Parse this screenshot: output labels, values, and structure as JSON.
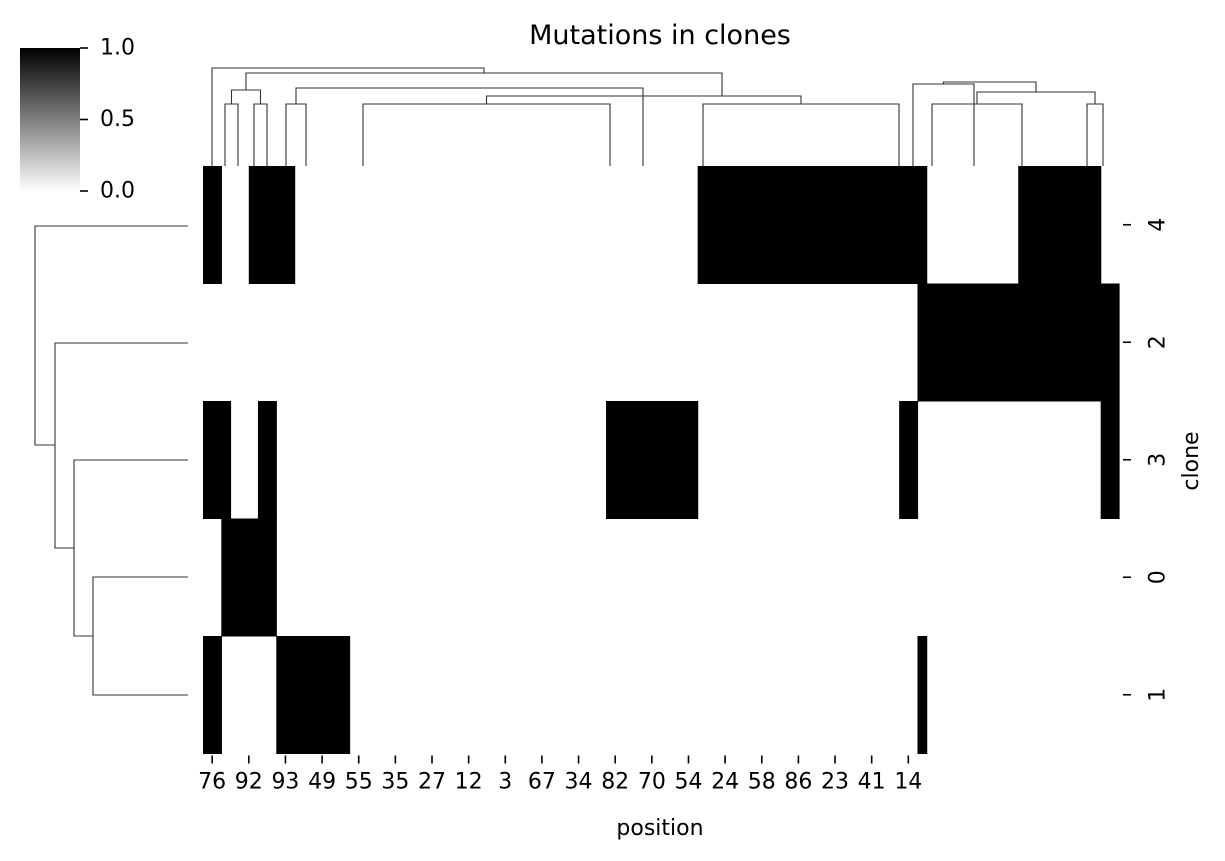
{
  "chart_data": {
    "type": "heatmap",
    "title": "Mutations in clones",
    "xlabel": "position",
    "ylabel": "clone",
    "x_tick_labels": [
      "76",
      "92",
      "93",
      "49",
      "55",
      "35",
      "27",
      "12",
      "3",
      "67",
      "34",
      "82",
      "70",
      "54",
      "24",
      "58",
      "86",
      "23",
      "41",
      "14"
    ],
    "rows": [
      {
        "clone": "4",
        "blocks": [
          [
            0,
            1
          ],
          [
            2.5,
            5
          ],
          [
            27,
            39.5
          ],
          [
            44.5,
            49
          ]
        ]
      },
      {
        "clone": "2",
        "blocks": [
          [
            39,
            50
          ]
        ]
      },
      {
        "clone": "3",
        "blocks": [
          [
            0,
            1.5
          ],
          [
            3,
            4
          ],
          [
            22,
            27
          ],
          [
            38,
            39
          ],
          [
            49,
            50
          ]
        ]
      },
      {
        "clone": "0",
        "blocks": [
          [
            1,
            4
          ]
        ]
      },
      {
        "clone": "1",
        "blocks": [
          [
            0,
            1
          ],
          [
            4,
            8
          ],
          [
            39,
            39.5
          ]
        ]
      }
    ],
    "column_units": 50,
    "value_range": [
      0,
      1
    ],
    "colorbar": {
      "ticks": [
        "0.0",
        "0.5",
        "1.0"
      ],
      "colormap": "white-to-black",
      "low_color": "#ffffff",
      "high_color": "#000000"
    },
    "row_dendrogram": true,
    "column_dendrogram": true
  }
}
